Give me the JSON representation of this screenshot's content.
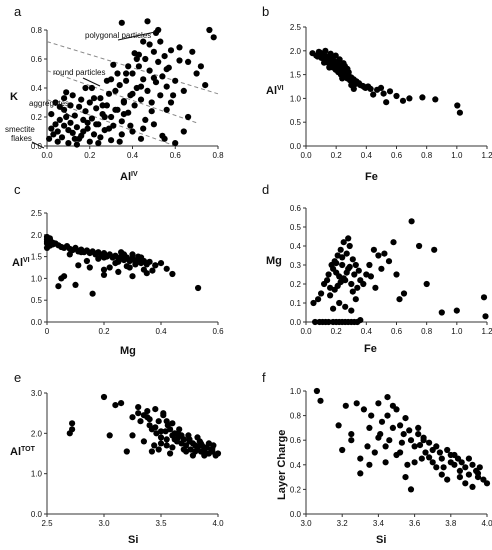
{
  "chart_data": [
    {
      "type": "scatter",
      "panel": "a",
      "xlabel": "Al",
      "xlabel_sup": "IV",
      "ylabel": "K",
      "xlim": [
        0,
        0.8
      ],
      "ylim": [
        0,
        0.8
      ],
      "xticks": [
        "0.0",
        "0.2",
        "0.4",
        "0.6",
        "0.8"
      ],
      "yticks": [
        "0.0",
        "0.2",
        "0.4",
        "0.6",
        "0.8"
      ],
      "annotations": [
        "polygonal particles",
        "round particles",
        "aggregates",
        "smectite",
        "flakes"
      ],
      "guides": [
        {
          "from": [
            0.0,
            0.72
          ],
          "to": [
            0.8,
            0.36
          ]
        },
        {
          "from": [
            0.0,
            0.52
          ],
          "to": [
            0.7,
            0.16
          ]
        },
        {
          "from": [
            0.0,
            0.32
          ],
          "to": [
            0.6,
            0.0
          ]
        }
      ],
      "x": [
        0.01,
        0.02,
        0.03,
        0.04,
        0.05,
        0.06,
        0.07,
        0.08,
        0.09,
        0.1,
        0.02,
        0.05,
        0.08,
        0.11,
        0.12,
        0.13,
        0.14,
        0.15,
        0.16,
        0.17,
        0.18,
        0.19,
        0.2,
        0.21,
        0.22,
        0.23,
        0.24,
        0.25,
        0.26,
        0.27,
        0.28,
        0.29,
        0.3,
        0.31,
        0.32,
        0.33,
        0.34,
        0.35,
        0.36,
        0.37,
        0.38,
        0.39,
        0.4,
        0.41,
        0.42,
        0.43,
        0.44,
        0.45,
        0.46,
        0.47,
        0.48,
        0.49,
        0.5,
        0.51,
        0.52,
        0.53,
        0.54,
        0.55,
        0.56,
        0.57,
        0.58,
        0.6,
        0.62,
        0.64,
        0.66,
        0.7,
        0.74,
        0.76,
        0.78,
        0.1,
        0.15,
        0.2,
        0.25,
        0.3,
        0.35,
        0.4,
        0.45,
        0.5,
        0.55,
        0.6,
        0.12,
        0.18,
        0.22,
        0.28,
        0.33,
        0.38,
        0.43,
        0.48,
        0.53,
        0.58,
        0.14,
        0.24,
        0.34,
        0.44,
        0.54,
        0.64,
        0.06,
        0.16,
        0.26,
        0.36,
        0.46,
        0.56,
        0.66,
        0.09,
        0.19,
        0.29,
        0.39,
        0.49,
        0.59,
        0.31,
        0.41,
        0.51,
        0.35,
        0.45,
        0.47,
        0.52,
        0.42,
        0.37,
        0.3,
        0.21,
        0.11,
        0.04,
        0.08,
        0.13,
        0.17,
        0.23,
        0.27,
        0.32,
        0.36,
        0.4,
        0.44,
        0.5,
        0.56,
        0.62,
        0.68,
        0.72
      ],
      "y": [
        0.05,
        0.12,
        0.08,
        0.15,
        0.1,
        0.18,
        0.06,
        0.14,
        0.2,
        0.11,
        0.22,
        0.03,
        0.25,
        0.16,
        0.09,
        0.21,
        0.13,
        0.27,
        0.07,
        0.18,
        0.24,
        0.12,
        0.3,
        0.19,
        0.08,
        0.26,
        0.15,
        0.33,
        0.22,
        0.11,
        0.28,
        0.36,
        0.2,
        0.14,
        0.38,
        0.25,
        0.42,
        0.17,
        0.31,
        0.45,
        0.23,
        0.35,
        0.5,
        0.28,
        0.4,
        0.55,
        0.32,
        0.46,
        0.6,
        0.38,
        0.52,
        0.3,
        0.65,
        0.44,
        0.58,
        0.35,
        0.48,
        0.62,
        0.41,
        0.54,
        0.3,
        0.45,
        0.68,
        0.38,
        0.58,
        0.5,
        0.42,
        0.8,
        0.75,
        0.02,
        0.05,
        0.03,
        0.06,
        0.04,
        0.08,
        0.1,
        0.12,
        0.15,
        0.05,
        0.02,
        0.35,
        0.4,
        0.33,
        0.45,
        0.5,
        0.55,
        0.63,
        0.7,
        0.72,
        0.66,
        0.01,
        0.02,
        0.03,
        0.05,
        0.07,
        0.1,
        0.27,
        0.32,
        0.28,
        0.22,
        0.18,
        0.25,
        0.2,
        0.37,
        0.16,
        0.12,
        0.14,
        0.24,
        0.35,
        0.56,
        0.64,
        0.78,
        0.85,
        0.72,
        0.86,
        0.8,
        0.6,
        0.5,
        0.46,
        0.4,
        0.28,
        0.3,
        0.33,
        0.05,
        0.1,
        0.15,
        0.2,
        0.25,
        0.3,
        0.36,
        0.41,
        0.47,
        0.53,
        0.59,
        0.65,
        0.55
      ]
    },
    {
      "type": "scatter",
      "panel": "b",
      "xlabel": "Fe",
      "ylabel": "Al",
      "ylabel_sup": "VI",
      "xlim": [
        0,
        1.4
      ],
      "ylim": [
        0,
        2.5
      ],
      "xticks": [
        "0.0",
        "0.2",
        "0.4",
        "0.6",
        "0.8",
        "1.0",
        "1.2"
      ],
      "yticks": [
        "0.0",
        "0.5",
        "1.0",
        "1.5",
        "2.0",
        "2.5"
      ],
      "x": [
        0.05,
        0.08,
        0.1,
        0.12,
        0.13,
        0.15,
        0.16,
        0.17,
        0.18,
        0.19,
        0.2,
        0.21,
        0.22,
        0.23,
        0.24,
        0.25,
        0.26,
        0.27,
        0.28,
        0.29,
        0.3,
        0.31,
        0.32,
        0.33,
        0.34,
        0.35,
        0.36,
        0.37,
        0.38,
        0.39,
        0.4,
        0.42,
        0.44,
        0.46,
        0.48,
        0.5,
        0.55,
        0.6,
        0.65,
        0.7,
        0.75,
        0.8,
        0.9,
        1.0,
        1.17,
        1.19,
        0.14,
        0.18,
        0.22,
        0.26,
        0.3,
        0.34,
        0.38,
        0.24,
        0.28,
        0.32,
        0.36,
        0.2,
        0.25,
        0.35,
        0.45,
        0.52,
        0.58,
        0.62,
        0.3,
        0.27,
        0.33,
        0.23,
        0.21,
        0.29,
        0.31,
        0.37,
        0.41,
        0.11,
        0.09,
        0.15,
        0.19,
        0.26,
        0.32,
        0.28
      ],
      "y": [
        1.95,
        1.9,
        1.98,
        1.85,
        1.92,
        1.8,
        1.88,
        1.75,
        1.82,
        1.7,
        1.86,
        1.65,
        1.78,
        1.6,
        1.72,
        1.55,
        1.68,
        1.5,
        1.62,
        1.45,
        1.58,
        1.52,
        1.42,
        1.48,
        1.38,
        1.44,
        1.35,
        1.4,
        1.3,
        1.36,
        1.32,
        1.28,
        1.26,
        1.22,
        1.25,
        1.2,
        1.18,
        1.1,
        1.15,
        1.05,
        0.95,
        1.0,
        1.02,
        0.98,
        0.85,
        0.7,
        1.75,
        1.65,
        1.7,
        1.55,
        1.5,
        1.4,
        1.3,
        1.6,
        1.58,
        1.45,
        1.38,
        1.8,
        1.72,
        1.28,
        1.24,
        1.08,
        1.22,
        0.92,
        1.68,
        1.62,
        1.55,
        1.9,
        1.66,
        1.74,
        1.48,
        1.2,
        1.32,
        1.96,
        1.88,
        2.0,
        1.94,
        1.82,
        1.62,
        1.42
      ]
    },
    {
      "type": "scatter",
      "panel": "c",
      "xlabel": "Mg",
      "ylabel": "Al",
      "ylabel_sup": "VI",
      "xlim": [
        0,
        0.6
      ],
      "ylim": [
        0,
        2.5
      ],
      "xticks": [
        "0",
        "0.2",
        "0.4",
        "0.6"
      ],
      "yticks": [
        "0.0",
        "0.5",
        "1.0",
        "1.5",
        "2.0",
        "2.5"
      ],
      "x": [
        0.0,
        0.0,
        0.0,
        0.0,
        0.0,
        0.01,
        0.01,
        0.01,
        0.02,
        0.02,
        0.03,
        0.04,
        0.05,
        0.06,
        0.07,
        0.08,
        0.09,
        0.1,
        0.11,
        0.12,
        0.13,
        0.14,
        0.15,
        0.16,
        0.17,
        0.18,
        0.19,
        0.2,
        0.21,
        0.22,
        0.23,
        0.24,
        0.25,
        0.26,
        0.27,
        0.28,
        0.29,
        0.3,
        0.31,
        0.32,
        0.33,
        0.34,
        0.35,
        0.36,
        0.38,
        0.4,
        0.42,
        0.44,
        0.53,
        0.05,
        0.1,
        0.15,
        0.2,
        0.25,
        0.3,
        0.35,
        0.12,
        0.18,
        0.24,
        0.28,
        0.22,
        0.26,
        0.32,
        0.16,
        0.2,
        0.14,
        0.3,
        0.34,
        0.38,
        0.08,
        0.04,
        0.06,
        0.11,
        0.2,
        0.25,
        0.27,
        0.29,
        0.31,
        0.33,
        0.37
      ],
      "y": [
        1.95,
        1.9,
        1.85,
        1.8,
        1.7,
        1.92,
        1.88,
        1.75,
        1.82,
        1.78,
        1.8,
        1.76,
        1.72,
        1.7,
        1.74,
        1.68,
        1.65,
        1.7,
        1.62,
        1.66,
        1.6,
        1.64,
        1.58,
        1.62,
        1.55,
        1.6,
        1.52,
        1.58,
        1.5,
        1.55,
        1.48,
        1.52,
        1.45,
        1.5,
        1.42,
        1.48,
        1.4,
        1.46,
        1.38,
        1.44,
        1.35,
        1.4,
        1.32,
        1.38,
        1.3,
        1.35,
        1.22,
        1.1,
        0.78,
        1.0,
        0.85,
        1.25,
        1.2,
        1.15,
        1.05,
        1.12,
        1.6,
        1.45,
        1.35,
        1.28,
        1.25,
        1.6,
        1.5,
        0.65,
        1.08,
        1.4,
        1.55,
        1.2,
        1.3,
        1.55,
        0.82,
        1.05,
        1.3,
        1.48,
        1.38,
        1.55,
        1.25,
        1.32,
        1.48,
        1.18
      ]
    },
    {
      "type": "scatter",
      "panel": "d",
      "xlabel": "Fe",
      "ylabel": "Mg",
      "xlim": [
        0,
        1.2
      ],
      "ylim": [
        0,
        0.6
      ],
      "xticks": [
        "0.0",
        "0.2",
        "0.4",
        "0.6",
        "0.8",
        "1.0",
        "1.2"
      ],
      "yticks": [
        "0.0",
        "0.1",
        "0.2",
        "0.3",
        "0.4",
        "0.5",
        "0.6"
      ],
      "x": [
        0.05,
        0.08,
        0.1,
        0.12,
        0.14,
        0.15,
        0.16,
        0.17,
        0.18,
        0.19,
        0.2,
        0.21,
        0.22,
        0.23,
        0.24,
        0.25,
        0.26,
        0.27,
        0.28,
        0.29,
        0.3,
        0.31,
        0.32,
        0.33,
        0.34,
        0.35,
        0.36,
        0.38,
        0.4,
        0.42,
        0.45,
        0.48,
        0.5,
        0.55,
        0.6,
        0.65,
        0.7,
        0.75,
        0.8,
        0.9,
        1.0,
        1.18,
        1.19,
        0.06,
        0.09,
        0.11,
        0.13,
        0.15,
        0.18,
        0.2,
        0.22,
        0.24,
        0.26,
        0.28,
        0.3,
        0.32,
        0.34,
        0.36,
        0.16,
        0.19,
        0.21,
        0.23,
        0.25,
        0.27,
        0.29,
        0.31,
        0.33,
        0.22,
        0.26,
        0.3,
        0.2,
        0.24,
        0.28,
        0.18,
        0.62,
        0.58,
        0.52,
        0.43,
        0.46,
        0.85
      ],
      "y": [
        0.1,
        0.12,
        0.15,
        0.2,
        0.22,
        0.25,
        0.18,
        0.3,
        0.28,
        0.32,
        0.26,
        0.35,
        0.24,
        0.38,
        0.3,
        0.42,
        0.22,
        0.36,
        0.28,
        0.4,
        0.2,
        0.33,
        0.25,
        0.3,
        0.18,
        0.27,
        0.22,
        0.2,
        0.25,
        0.3,
        0.38,
        0.35,
        0.28,
        0.32,
        0.25,
        0.15,
        0.53,
        0.4,
        0.2,
        0.05,
        0.06,
        0.13,
        0.03,
        0.0,
        0.0,
        0.0,
        0.0,
        0.0,
        0.0,
        0.0,
        0.0,
        0.0,
        0.0,
        0.0,
        0.0,
        0.0,
        0.0,
        0.01,
        0.14,
        0.17,
        0.19,
        0.21,
        0.23,
        0.26,
        0.29,
        0.16,
        0.12,
        0.1,
        0.08,
        0.06,
        0.31,
        0.34,
        0.44,
        0.07,
        0.12,
        0.42,
        0.36,
        0.24,
        0.18,
        0.38
      ]
    },
    {
      "type": "scatter",
      "panel": "e",
      "xlabel": "Si",
      "ylabel": "Al",
      "ylabel_sup": "TOT",
      "xlim": [
        2.5,
        4.0
      ],
      "ylim": [
        0,
        3.0
      ],
      "xticks": [
        "2.5",
        "3.0",
        "3.5",
        "4.0"
      ],
      "yticks": [
        "0.0",
        "1.0",
        "2.0",
        "3.0"
      ],
      "x": [
        2.7,
        2.72,
        2.72,
        3.0,
        3.05,
        3.1,
        3.15,
        3.2,
        3.25,
        3.3,
        3.32,
        3.35,
        3.38,
        3.4,
        3.42,
        3.45,
        3.46,
        3.48,
        3.5,
        3.52,
        3.54,
        3.55,
        3.56,
        3.58,
        3.6,
        3.62,
        3.64,
        3.65,
        3.66,
        3.68,
        3.7,
        3.72,
        3.74,
        3.75,
        3.76,
        3.78,
        3.8,
        3.82,
        3.84,
        3.85,
        3.86,
        3.88,
        3.9,
        3.92,
        3.94,
        3.95,
        3.96,
        3.98,
        4.0,
        3.4,
        3.45,
        3.5,
        3.55,
        3.6,
        3.65,
        3.7,
        3.75,
        3.8,
        3.85,
        3.9,
        3.95,
        3.35,
        3.3,
        3.25,
        3.44,
        3.52,
        3.58,
        3.62,
        3.68,
        3.72,
        3.78,
        3.82,
        3.88,
        3.92,
        3.5,
        3.55,
        3.6,
        3.48,
        3.42,
        3.38
      ],
      "y": [
        2.0,
        2.25,
        2.1,
        2.9,
        1.95,
        2.7,
        2.75,
        1.55,
        2.4,
        2.5,
        2.3,
        1.8,
        2.4,
        2.2,
        2.1,
        2.6,
        2.0,
        2.3,
        1.9,
        2.5,
        2.05,
        1.85,
        2.2,
        2.1,
        1.95,
        2.0,
        1.8,
        1.9,
        2.1,
        1.75,
        1.85,
        1.7,
        1.95,
        1.8,
        1.6,
        1.75,
        1.7,
        1.65,
        1.8,
        1.55,
        1.7,
        1.6,
        1.65,
        1.5,
        1.6,
        1.55,
        1.7,
        1.45,
        1.5,
        2.35,
        2.15,
        1.75,
        2.3,
        1.65,
        2.0,
        1.6,
        1.85,
        1.55,
        1.75,
        1.5,
        1.62,
        2.45,
        2.65,
        1.95,
        1.7,
        2.45,
        1.5,
        1.85,
        1.95,
        1.55,
        1.45,
        1.9,
        1.45,
        1.75,
        2.05,
        1.7,
        2.25,
        1.6,
        1.55,
        2.55
      ]
    },
    {
      "type": "scatter",
      "panel": "f",
      "xlabel": "Si",
      "ylabel": "Layer Charge",
      "xlim": [
        3.0,
        4.0
      ],
      "ylim": [
        0,
        1.0
      ],
      "xticks": [
        "3.0",
        "3.2",
        "3.4",
        "3.6",
        "3.8",
        "4.0"
      ],
      "yticks": [
        "0.0",
        "0.2",
        "0.4",
        "0.6",
        "0.8",
        "1.0"
      ],
      "x": [
        3.06,
        3.08,
        3.18,
        3.2,
        3.22,
        3.25,
        3.28,
        3.3,
        3.32,
        3.34,
        3.35,
        3.36,
        3.38,
        3.4,
        3.41,
        3.42,
        3.44,
        3.45,
        3.46,
        3.48,
        3.5,
        3.52,
        3.54,
        3.55,
        3.56,
        3.58,
        3.6,
        3.62,
        3.64,
        3.65,
        3.66,
        3.68,
        3.7,
        3.72,
        3.74,
        3.75,
        3.76,
        3.78,
        3.8,
        3.82,
        3.84,
        3.85,
        3.86,
        3.88,
        3.9,
        3.92,
        3.94,
        3.95,
        3.96,
        3.98,
        4.0,
        3.4,
        3.45,
        3.5,
        3.55,
        3.6,
        3.65,
        3.7,
        3.75,
        3.8,
        3.85,
        3.9,
        3.95,
        3.35,
        3.3,
        3.25,
        3.44,
        3.52,
        3.58,
        3.62,
        3.68,
        3.72,
        3.78,
        3.82,
        3.88,
        3.92,
        3.48,
        3.53,
        3.57,
        3.63
      ],
      "y": [
        1.0,
        0.92,
        0.72,
        0.52,
        0.88,
        0.6,
        0.9,
        0.45,
        0.85,
        0.55,
        0.7,
        0.8,
        0.5,
        0.9,
        0.65,
        0.75,
        0.55,
        0.95,
        0.6,
        0.7,
        0.85,
        0.5,
        0.65,
        0.78,
        0.4,
        0.6,
        0.55,
        0.7,
        0.45,
        0.6,
        0.5,
        0.58,
        0.42,
        0.55,
        0.5,
        0.45,
        0.38,
        0.52,
        0.48,
        0.4,
        0.45,
        0.35,
        0.42,
        0.38,
        0.32,
        0.4,
        0.35,
        0.3,
        0.38,
        0.28,
        0.25,
        0.62,
        0.8,
        0.48,
        0.3,
        0.42,
        0.62,
        0.52,
        0.32,
        0.42,
        0.3,
        0.45,
        0.33,
        0.4,
        0.33,
        0.65,
        0.42,
        0.72,
        0.2,
        0.65,
        0.46,
        0.38,
        0.28,
        0.48,
        0.25,
        0.22,
        0.88,
        0.58,
        0.68,
        0.56
      ]
    }
  ]
}
